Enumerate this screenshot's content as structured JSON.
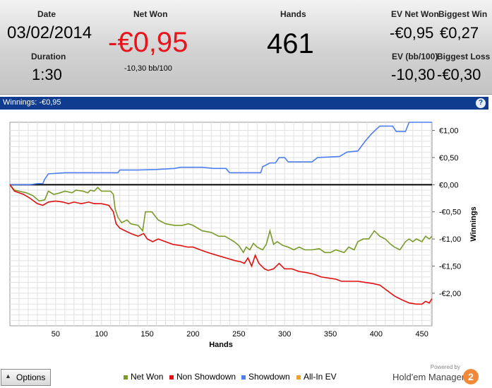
{
  "stats": {
    "date_label": "Date",
    "date_value": "03/02/2014",
    "duration_label": "Duration",
    "duration_value": "1:30",
    "net_won_label": "Net Won",
    "net_won_value": "-€0,95",
    "net_won_bb": "-10,30 bb/100",
    "hands_label": "Hands",
    "hands_value": "461",
    "ev_net_won_label": "EV Net Won",
    "ev_net_won_value": "-€0,95",
    "biggest_win_label": "Biggest Win",
    "biggest_win_value": "€0,27",
    "ev_bb_label": "EV (bb/100)",
    "ev_bb_value": "-10,30",
    "biggest_loss_label": "Biggest Loss",
    "biggest_loss_value": "-€0,30"
  },
  "panel": {
    "title": "Winnings: -€0,95",
    "help_icon": "?"
  },
  "bottom": {
    "options_label": "Options",
    "powered_by": "Powered by",
    "brand_name": "Hold'em Manager",
    "brand_logo": "2"
  },
  "colors": {
    "net_won": "#7a9a2a",
    "non_showdown": "#e01010",
    "showdown": "#4d7ff0",
    "all_in_ev": "#f0a030",
    "net_won_value": "#e8141b",
    "title_bar": "#0f3c8e"
  },
  "chart_data": {
    "type": "line",
    "xlabel": "Hands",
    "ylabel": "Winnings",
    "xlim": [
      0,
      461
    ],
    "ylim": [
      -2.6,
      1.15
    ],
    "x_ticks": [
      50,
      100,
      150,
      200,
      250,
      300,
      350,
      400,
      450
    ],
    "y_ticks": [
      {
        "value": 1.0,
        "label": "€1,00"
      },
      {
        "value": 0.5,
        "label": "€0,50"
      },
      {
        "value": 0.0,
        "label": "€0,00"
      },
      {
        "value": -0.5,
        "label": "-€0,50"
      },
      {
        "value": -1.0,
        "label": "-€1,00"
      },
      {
        "value": -1.5,
        "label": "-€1,50"
      },
      {
        "value": -2.0,
        "label": "-€2,00"
      }
    ],
    "legend_position": "bottom",
    "grid": true,
    "series": [
      {
        "name": "Net Won",
        "color": "#7a9a2a",
        "points": [
          [
            0,
            0
          ],
          [
            5,
            -0.1
          ],
          [
            18,
            -0.15
          ],
          [
            25,
            -0.2
          ],
          [
            32,
            -0.3
          ],
          [
            38,
            -0.28
          ],
          [
            42,
            -0.12
          ],
          [
            48,
            -0.18
          ],
          [
            55,
            -0.15
          ],
          [
            60,
            -0.12
          ],
          [
            68,
            -0.15
          ],
          [
            72,
            -0.1
          ],
          [
            80,
            -0.12
          ],
          [
            85,
            -0.15
          ],
          [
            88,
            -0.1
          ],
          [
            92,
            -0.12
          ],
          [
            96,
            -0.05
          ],
          [
            100,
            -0.12
          ],
          [
            110,
            -0.12
          ],
          [
            113,
            -0.18
          ],
          [
            115,
            -0.45
          ],
          [
            118,
            -0.6
          ],
          [
            122,
            -0.7
          ],
          [
            128,
            -0.65
          ],
          [
            132,
            -0.72
          ],
          [
            140,
            -0.75
          ],
          [
            145,
            -0.85
          ],
          [
            148,
            -0.5
          ],
          [
            155,
            -0.5
          ],
          [
            162,
            -0.65
          ],
          [
            170,
            -0.72
          ],
          [
            180,
            -0.75
          ],
          [
            188,
            -0.75
          ],
          [
            195,
            -0.72
          ],
          [
            200,
            -0.75
          ],
          [
            210,
            -0.85
          ],
          [
            220,
            -0.88
          ],
          [
            228,
            -0.95
          ],
          [
            235,
            -0.95
          ],
          [
            245,
            -1.05
          ],
          [
            250,
            -1.12
          ],
          [
            255,
            -1.25
          ],
          [
            258,
            -1.15
          ],
          [
            262,
            -1.2
          ],
          [
            266,
            -1.08
          ],
          [
            270,
            -1.15
          ],
          [
            276,
            -1.2
          ],
          [
            280,
            -1.1
          ],
          [
            284,
            -0.85
          ],
          [
            288,
            -1.1
          ],
          [
            292,
            -1.05
          ],
          [
            298,
            -1.12
          ],
          [
            304,
            -1.15
          ],
          [
            310,
            -1.2
          ],
          [
            316,
            -1.15
          ],
          [
            322,
            -1.2
          ],
          [
            330,
            -1.2
          ],
          [
            338,
            -1.18
          ],
          [
            344,
            -1.25
          ],
          [
            350,
            -1.25
          ],
          [
            356,
            -1.2
          ],
          [
            365,
            -1.25
          ],
          [
            370,
            -1.15
          ],
          [
            376,
            -1.2
          ],
          [
            380,
            -1.05
          ],
          [
            386,
            -1.0
          ],
          [
            392,
            -1.0
          ],
          [
            398,
            -0.85
          ],
          [
            404,
            -0.95
          ],
          [
            410,
            -1.0
          ],
          [
            416,
            -1.1
          ],
          [
            420,
            -1.15
          ],
          [
            426,
            -1.2
          ],
          [
            432,
            -1.05
          ],
          [
            436,
            -1.0
          ],
          [
            440,
            -1.05
          ],
          [
            444,
            -1.0
          ],
          [
            450,
            -1.05
          ],
          [
            454,
            -0.95
          ],
          [
            458,
            -1.0
          ],
          [
            461,
            -0.95
          ]
        ]
      },
      {
        "name": "Non Showdown",
        "color": "#e01010",
        "points": [
          [
            0,
            0
          ],
          [
            5,
            -0.12
          ],
          [
            15,
            -0.18
          ],
          [
            22,
            -0.25
          ],
          [
            30,
            -0.35
          ],
          [
            36,
            -0.38
          ],
          [
            42,
            -0.32
          ],
          [
            50,
            -0.3
          ],
          [
            58,
            -0.32
          ],
          [
            64,
            -0.35
          ],
          [
            70,
            -0.32
          ],
          [
            78,
            -0.35
          ],
          [
            86,
            -0.32
          ],
          [
            92,
            -0.35
          ],
          [
            100,
            -0.35
          ],
          [
            108,
            -0.38
          ],
          [
            113,
            -0.5
          ],
          [
            116,
            -0.72
          ],
          [
            120,
            -0.8
          ],
          [
            126,
            -0.85
          ],
          [
            132,
            -0.9
          ],
          [
            140,
            -0.95
          ],
          [
            146,
            -0.9
          ],
          [
            150,
            -1.0
          ],
          [
            156,
            -1.05
          ],
          [
            162,
            -1.0
          ],
          [
            170,
            -1.05
          ],
          [
            178,
            -1.1
          ],
          [
            186,
            -1.12
          ],
          [
            194,
            -1.15
          ],
          [
            200,
            -1.15
          ],
          [
            208,
            -1.2
          ],
          [
            216,
            -1.25
          ],
          [
            226,
            -1.3
          ],
          [
            236,
            -1.35
          ],
          [
            246,
            -1.4
          ],
          [
            252,
            -1.42
          ],
          [
            256,
            -1.45
          ],
          [
            260,
            -1.35
          ],
          [
            264,
            -1.5
          ],
          [
            268,
            -1.3
          ],
          [
            272,
            -1.45
          ],
          [
            278,
            -1.55
          ],
          [
            282,
            -1.58
          ],
          [
            288,
            -1.55
          ],
          [
            294,
            -1.45
          ],
          [
            300,
            -1.55
          ],
          [
            308,
            -1.55
          ],
          [
            316,
            -1.6
          ],
          [
            324,
            -1.62
          ],
          [
            332,
            -1.65
          ],
          [
            340,
            -1.7
          ],
          [
            348,
            -1.72
          ],
          [
            356,
            -1.74
          ],
          [
            362,
            -1.78
          ],
          [
            370,
            -1.78
          ],
          [
            380,
            -1.78
          ],
          [
            388,
            -1.8
          ],
          [
            396,
            -1.82
          ],
          [
            404,
            -1.85
          ],
          [
            412,
            -1.95
          ],
          [
            420,
            -2.05
          ],
          [
            428,
            -2.12
          ],
          [
            436,
            -2.18
          ],
          [
            444,
            -2.2
          ],
          [
            450,
            -2.2
          ],
          [
            454,
            -2.15
          ],
          [
            458,
            -2.18
          ],
          [
            461,
            -2.1
          ]
        ]
      },
      {
        "name": "Showdown",
        "color": "#4d7ff0",
        "points": [
          [
            0,
            0
          ],
          [
            22,
            0
          ],
          [
            30,
            0.02
          ],
          [
            36,
            0.02
          ],
          [
            38,
            0.1
          ],
          [
            42,
            0.2
          ],
          [
            60,
            0.22
          ],
          [
            80,
            0.22
          ],
          [
            100,
            0.22
          ],
          [
            118,
            0.22
          ],
          [
            120,
            0.27
          ],
          [
            140,
            0.27
          ],
          [
            160,
            0.28
          ],
          [
            180,
            0.3
          ],
          [
            186,
            0.32
          ],
          [
            210,
            0.32
          ],
          [
            222,
            0.3
          ],
          [
            236,
            0.3
          ],
          [
            240,
            0.22
          ],
          [
            260,
            0.22
          ],
          [
            274,
            0.22
          ],
          [
            276,
            0.33
          ],
          [
            284,
            0.4
          ],
          [
            290,
            0.4
          ],
          [
            294,
            0.5
          ],
          [
            300,
            0.5
          ],
          [
            304,
            0.42
          ],
          [
            330,
            0.42
          ],
          [
            336,
            0.5
          ],
          [
            360,
            0.52
          ],
          [
            368,
            0.6
          ],
          [
            380,
            0.62
          ],
          [
            388,
            0.8
          ],
          [
            394,
            0.92
          ],
          [
            400,
            1.02
          ],
          [
            404,
            1.08
          ],
          [
            418,
            1.08
          ],
          [
            422,
            0.98
          ],
          [
            432,
            0.98
          ],
          [
            436,
            1.15
          ],
          [
            461,
            1.15
          ]
        ]
      },
      {
        "name": "All-In EV",
        "color": "#f0a030",
        "points": []
      }
    ]
  }
}
